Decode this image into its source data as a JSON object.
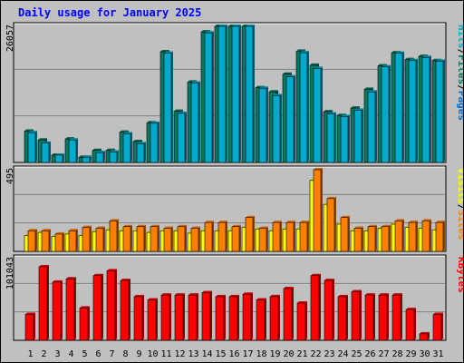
{
  "colors": {
    "hits": "#00aacc",
    "files": "#007a60",
    "pages": "#0070cc",
    "visits": "#ffff00",
    "sites": "#ff8000",
    "kbytes": "#ff0000",
    "weekend_day": "#007a60",
    "title": "#0000ff"
  },
  "chart_data": {
    "type": "bar",
    "title": "Daily usage for January 2025",
    "categories": [
      "1",
      "2",
      "3",
      "4",
      "5",
      "6",
      "7",
      "8",
      "9",
      "10",
      "11",
      "12",
      "13",
      "14",
      "15",
      "16",
      "17",
      "18",
      "19",
      "20",
      "21",
      "22",
      "23",
      "24",
      "25",
      "26",
      "27",
      "28",
      "29",
      "30",
      "31"
    ],
    "weekend_days": [
      "4",
      "5",
      "11",
      "12",
      "18",
      "19",
      "25",
      "26"
    ],
    "panels": [
      {
        "id": "hits_files",
        "label_parts": [
          "Pages",
          "/",
          "Files",
          "/",
          "Hits"
        ],
        "ymax_label": "26057",
        "ylim": [
          0,
          26057
        ],
        "series": [
          {
            "name": "Files",
            "values": [
              6000,
              4300,
              1400,
              4500,
              1000,
              2300,
              2300,
              5800,
              4000,
              7600,
              21200,
              9800,
              15400,
              25000,
              27000,
              26800,
              26400,
              14300,
              13500,
              16900,
              21300,
              18600,
              9700,
              9000,
              10400,
              14000,
              18500,
              21000,
              19700,
              20300,
              19500
            ]
          },
          {
            "name": "Hits",
            "values": [
              5700,
              3700,
              1400,
              4300,
              1000,
              1900,
              2000,
              5500,
              3600,
              7500,
              20900,
              9400,
              15200,
              24800,
              26900,
              26600,
              26100,
              14200,
              12800,
              16400,
              21000,
              18000,
              9300,
              8800,
              10000,
              13500,
              18300,
              20900,
              19500,
              20100,
              19400
            ]
          }
        ]
      },
      {
        "id": "visits_sites",
        "label_parts": [
          "Sites",
          "/",
          "Visits"
        ],
        "ymax_label": "495",
        "ylim": [
          0,
          495
        ],
        "series": [
          {
            "name": "Visits",
            "values": [
              95,
              115,
              90,
              105,
              95,
              120,
              130,
              125,
              125,
              115,
              125,
              125,
              110,
              125,
              125,
              125,
              145,
              135,
              125,
              135,
              135,
              430,
              285,
              165,
              125,
              125,
              140,
              165,
              145,
              140,
              130
            ]
          },
          {
            "name": "Sites",
            "values": [
              125,
              125,
              105,
              125,
              145,
              140,
              185,
              150,
              150,
              150,
              140,
              150,
              140,
              175,
              175,
              150,
              205,
              140,
              175,
              175,
              175,
              495,
              320,
              205,
              140,
              150,
              150,
              185,
              175,
              185,
              175
            ]
          }
        ]
      },
      {
        "id": "kbytes",
        "label_parts": [
          "KBytes"
        ],
        "ymax_label": "101043",
        "ylim": [
          0,
          101043
        ],
        "series": [
          {
            "name": "KBytes",
            "values": [
              32000,
              91000,
              72000,
              76000,
              40000,
              80000,
              86000,
              74000,
              54000,
              50000,
              56000,
              56000,
              56000,
              59000,
              54000,
              54000,
              57000,
              50000,
              54000,
              64000,
              46000,
              80000,
              74000,
              54000,
              60000,
              56000,
              56000,
              56000,
              38000,
              8000,
              32000
            ]
          }
        ]
      }
    ]
  }
}
